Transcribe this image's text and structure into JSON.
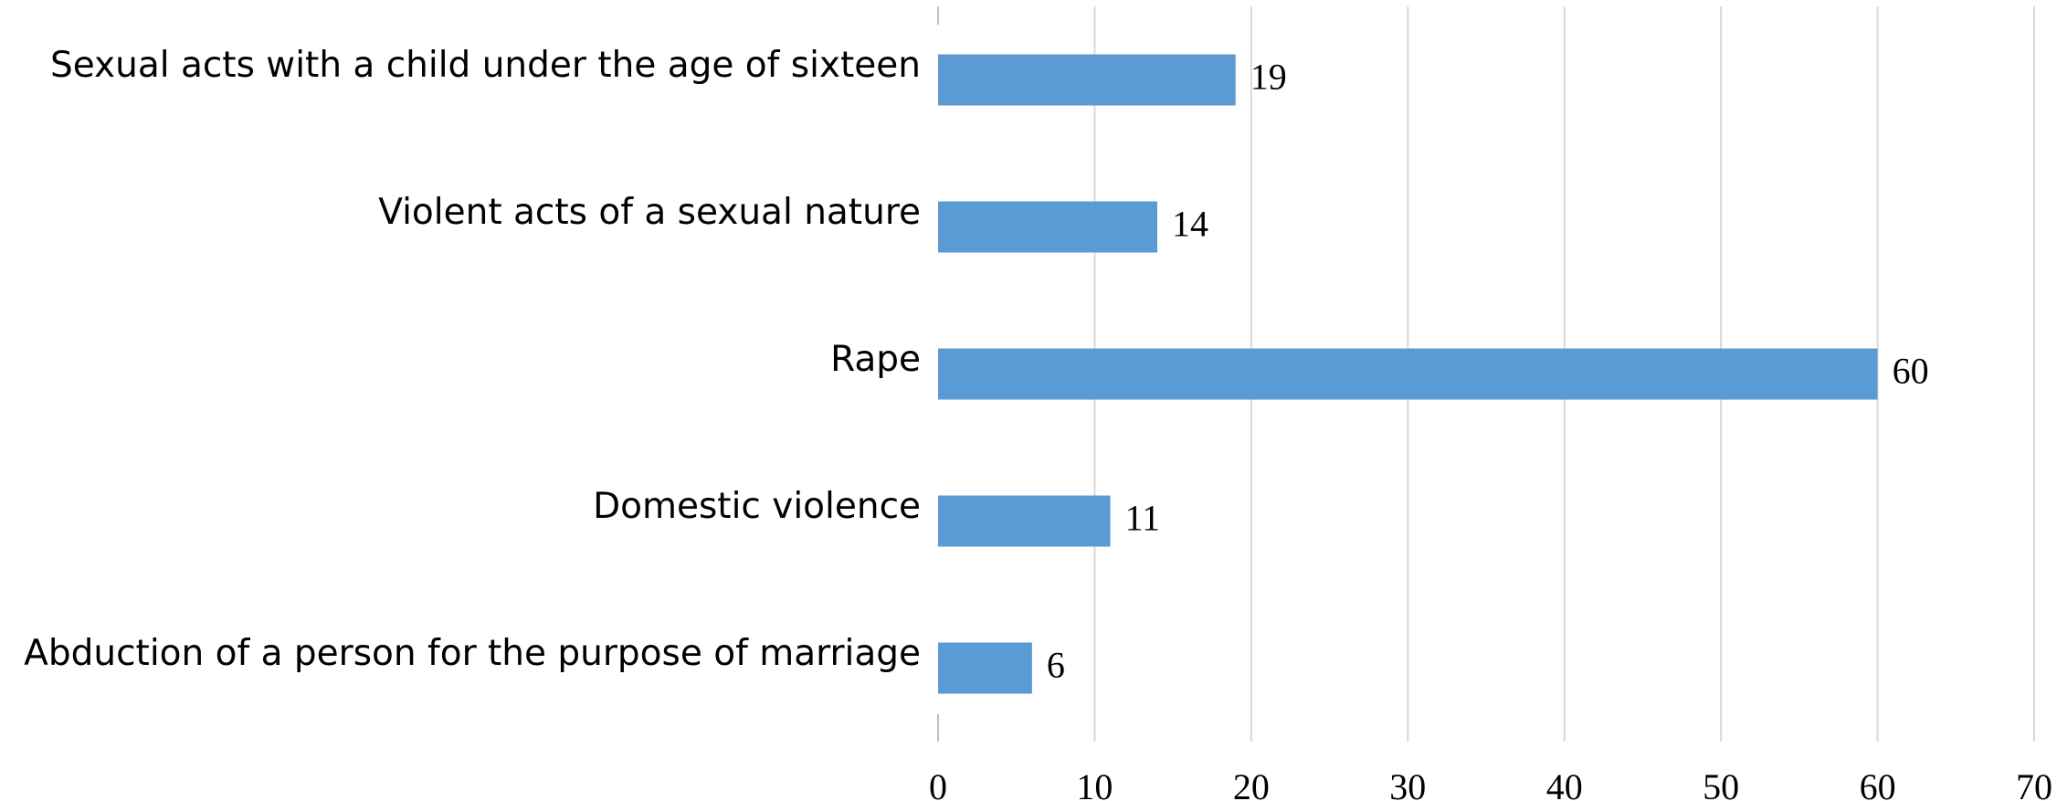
{
  "chart_data": {
    "type": "bar",
    "orientation": "horizontal",
    "categories": [
      "Sexual acts with a child under the age of sixteen",
      "Violent acts of a sexual nature",
      "Rape",
      "Domestic violence",
      "Abduction of a person for the purpose of marriage"
    ],
    "values": [
      19,
      14,
      60,
      11,
      6
    ],
    "color": "#5b9bd5",
    "xlim": [
      0,
      70
    ],
    "xticks": [
      0,
      10,
      20,
      30,
      40,
      50,
      60,
      70
    ],
    "grid": true
  }
}
